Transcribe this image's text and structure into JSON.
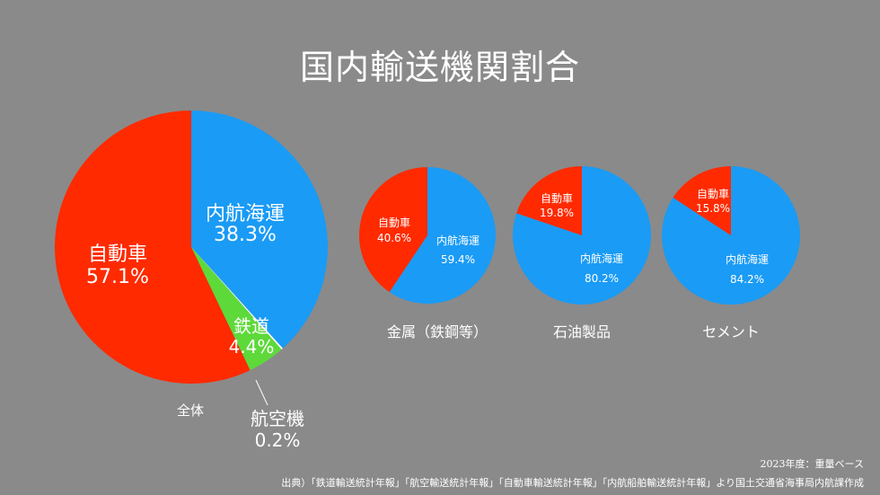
{
  "title": "国内輸送機関割合",
  "colors": {
    "background": "#8a8a8a",
    "truck": "#ff2a00",
    "ship": "#1a9bf5",
    "rail": "#5ed93a",
    "air": "#ffffff",
    "text": "#ffffff"
  },
  "chart_data": [
    {
      "type": "pie",
      "title": "全体",
      "slices": [
        {
          "label": "内航海運",
          "value_text": "38.3%",
          "value": 38.3,
          "color_key": "ship"
        },
        {
          "label": "航空機",
          "value_text": "0.2%",
          "value": 0.2,
          "color_key": "air"
        },
        {
          "label": "鉄道",
          "value_text": "4.4%",
          "value": 4.4,
          "color_key": "rail"
        },
        {
          "label": "自動車",
          "value_text": "57.1%",
          "value": 57.1,
          "color_key": "truck"
        }
      ]
    },
    {
      "type": "pie",
      "title": "金属（鉄鋼等）",
      "slices": [
        {
          "label": "内航海運",
          "value_text": "59.4%",
          "value": 59.4,
          "color_key": "ship"
        },
        {
          "label": "自動車",
          "value_text": "40.6%",
          "value": 40.6,
          "color_key": "truck"
        }
      ]
    },
    {
      "type": "pie",
      "title": "石油製品",
      "slices": [
        {
          "label": "内航海運",
          "value_text": "80.2%",
          "value": 80.2,
          "color_key": "ship"
        },
        {
          "label": "自動車",
          "value_text": "19.8%",
          "value": 19.8,
          "color_key": "truck"
        }
      ]
    },
    {
      "type": "pie",
      "title": "セメント",
      "slices": [
        {
          "label": "内航海運",
          "value_text": "84.2%",
          "value": 84.2,
          "color_key": "ship"
        },
        {
          "label": "自動車",
          "value_text": "15.8%",
          "value": 15.8,
          "color_key": "truck"
        }
      ]
    }
  ],
  "basis_note": "2023年度：重量ベース",
  "source_note": "出典）「鉄道輸送統計年報」「航空輸送統計年報」「自動車輸送統計年報」「内航船舶輸送統計年報」より国土交通省海事局内航課作成"
}
